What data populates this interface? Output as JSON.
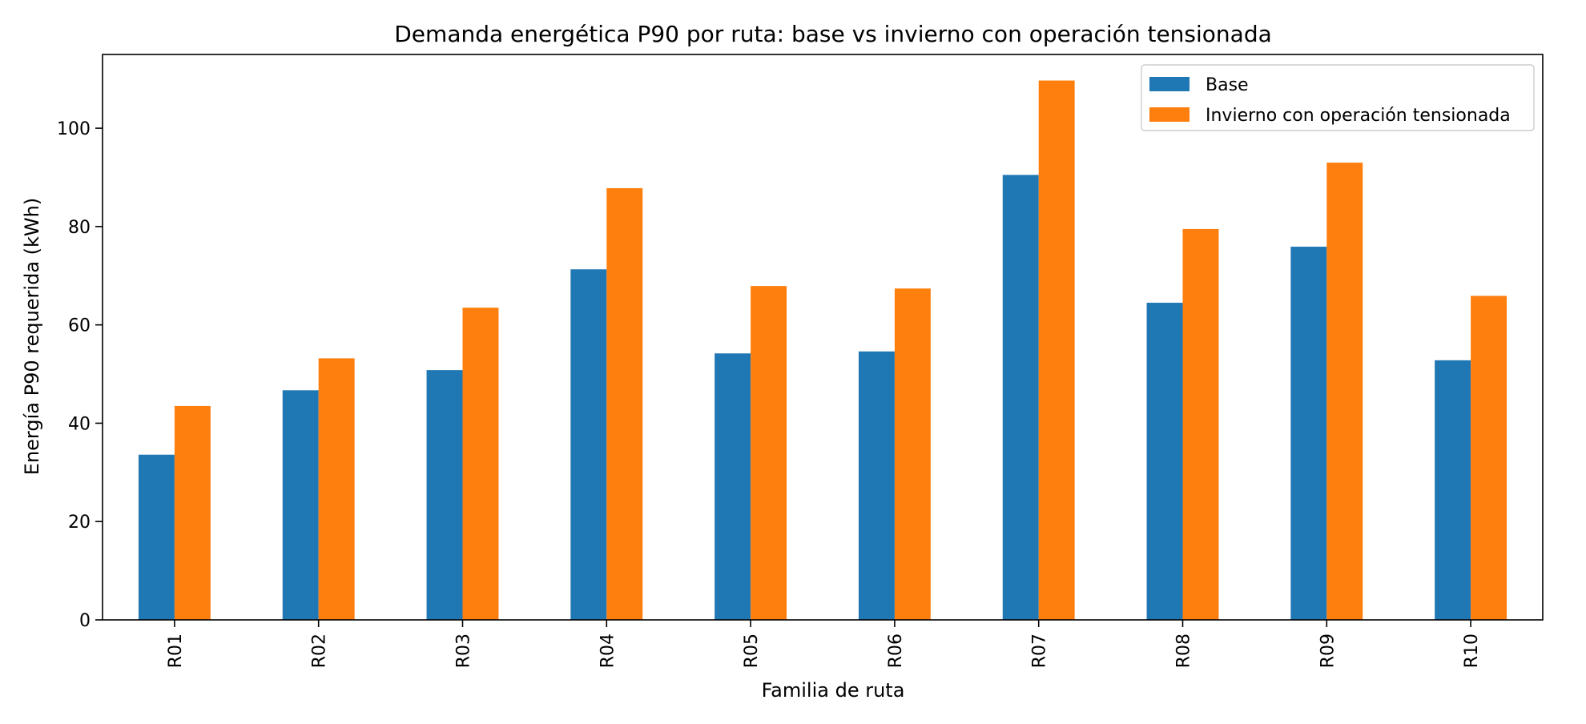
{
  "chart_data": {
    "type": "bar",
    "title": "Demanda energética P90 por ruta: base vs invierno con operación tensionada",
    "xlabel": "Familia de ruta",
    "ylabel": "Energía P90 requerida (kWh)",
    "categories": [
      "R01",
      "R02",
      "R03",
      "R04",
      "R05",
      "R06",
      "R07",
      "R08",
      "R09",
      "R10"
    ],
    "series": [
      {
        "name": "Base",
        "color": "#1f77b4",
        "values": [
          33.6,
          46.7,
          50.8,
          71.3,
          54.2,
          54.6,
          90.5,
          64.5,
          75.9,
          52.8
        ]
      },
      {
        "name": "Invierno con operación tensionada",
        "color": "#ff7f0e",
        "values": [
          43.5,
          53.2,
          63.5,
          87.8,
          67.9,
          67.4,
          109.7,
          79.5,
          93.0,
          65.9
        ]
      }
    ],
    "ylim": [
      0,
      115
    ],
    "yticks": [
      0,
      20,
      40,
      60,
      80,
      100
    ],
    "grid": false,
    "legend_position": "top-right",
    "x_tick_rotation": "vertical"
  }
}
